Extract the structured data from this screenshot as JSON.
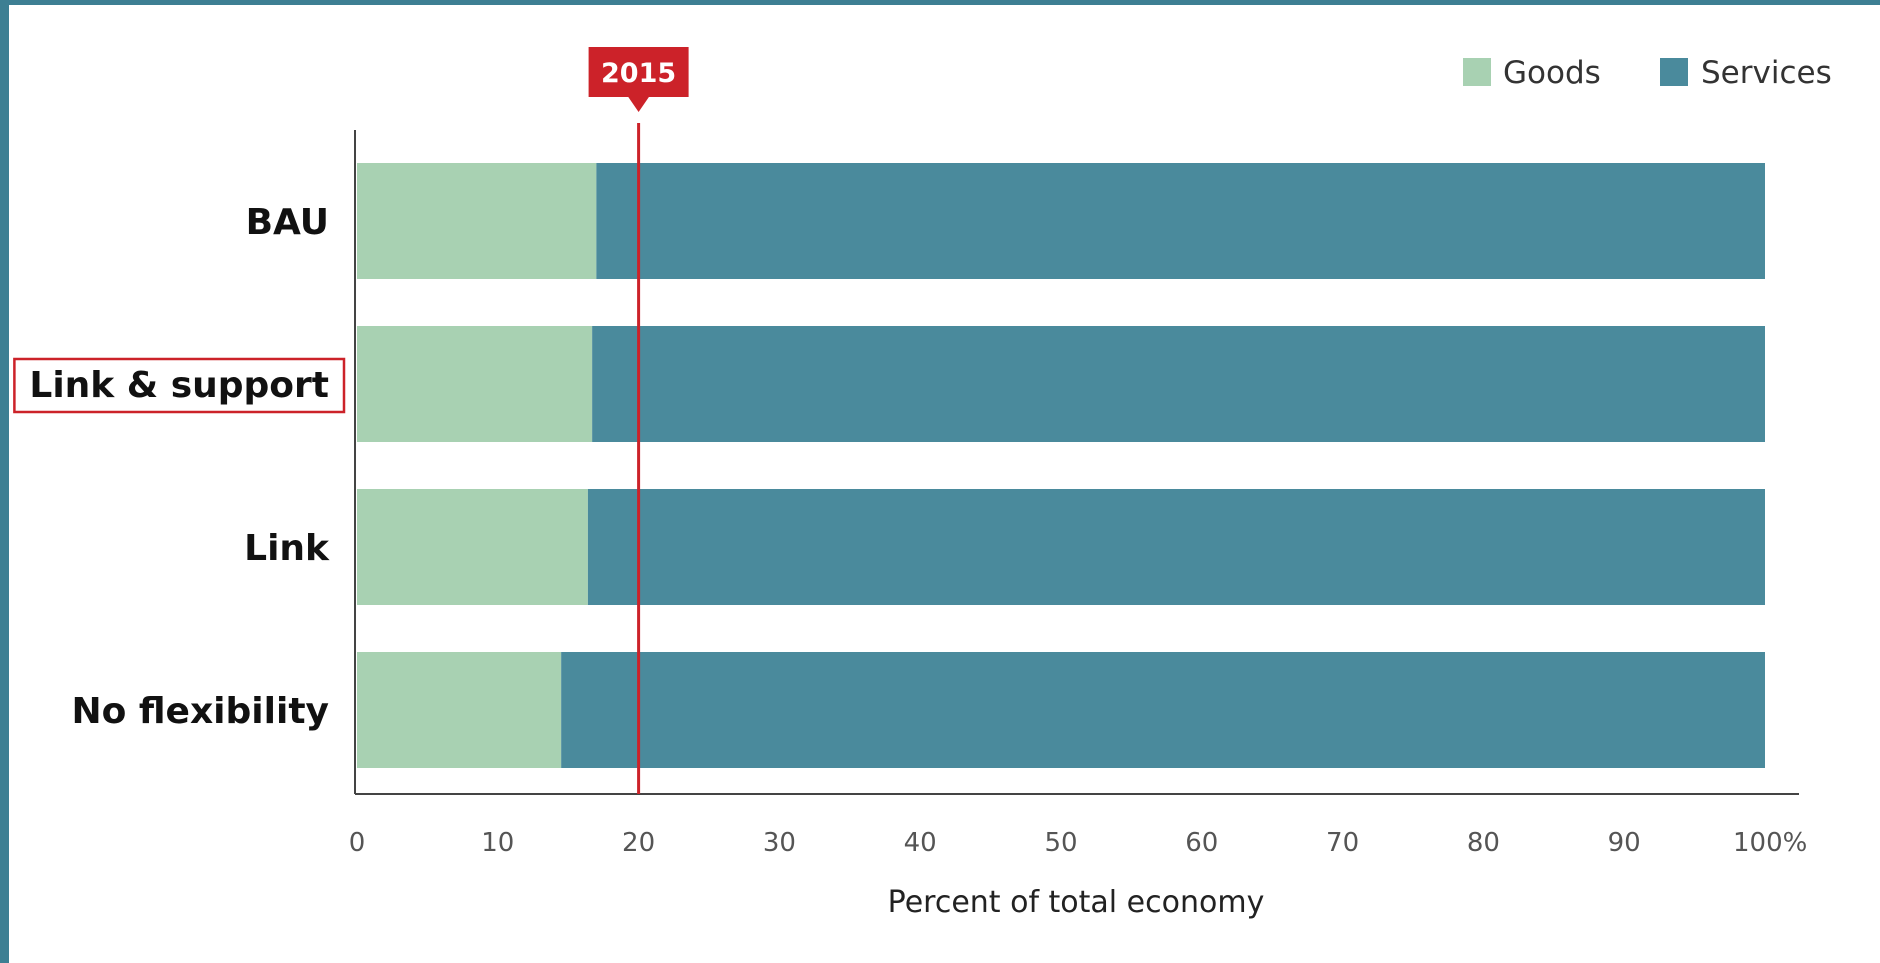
{
  "chart_data": {
    "type": "bar",
    "orientation": "horizontal",
    "stacked": true,
    "categories": [
      "BAU",
      "Link & support",
      "Link",
      "No flexibility"
    ],
    "highlighted_category": "Link & support",
    "series": [
      {
        "name": "Goods",
        "color": "#a8d1b2",
        "values": [
          17,
          16.7,
          16.4,
          14.5
        ]
      },
      {
        "name": "Services",
        "color": "#4a8a9c",
        "values": [
          83,
          83.3,
          83.6,
          85.5
        ]
      }
    ],
    "xlabel": "Percent of total economy",
    "ylabel": "",
    "xlim": [
      0,
      100
    ],
    "xticks": [
      0,
      10,
      20,
      30,
      40,
      50,
      60,
      70,
      80,
      90,
      100
    ],
    "xtick_labels": [
      "0",
      "10",
      "20",
      "30",
      "40",
      "50",
      "60",
      "70",
      "80",
      "90",
      "100%"
    ],
    "reference_line": {
      "value": 20,
      "label": "2015",
      "color": "#cc2229"
    },
    "legend": {
      "position": "top-right"
    },
    "grid": false
  }
}
